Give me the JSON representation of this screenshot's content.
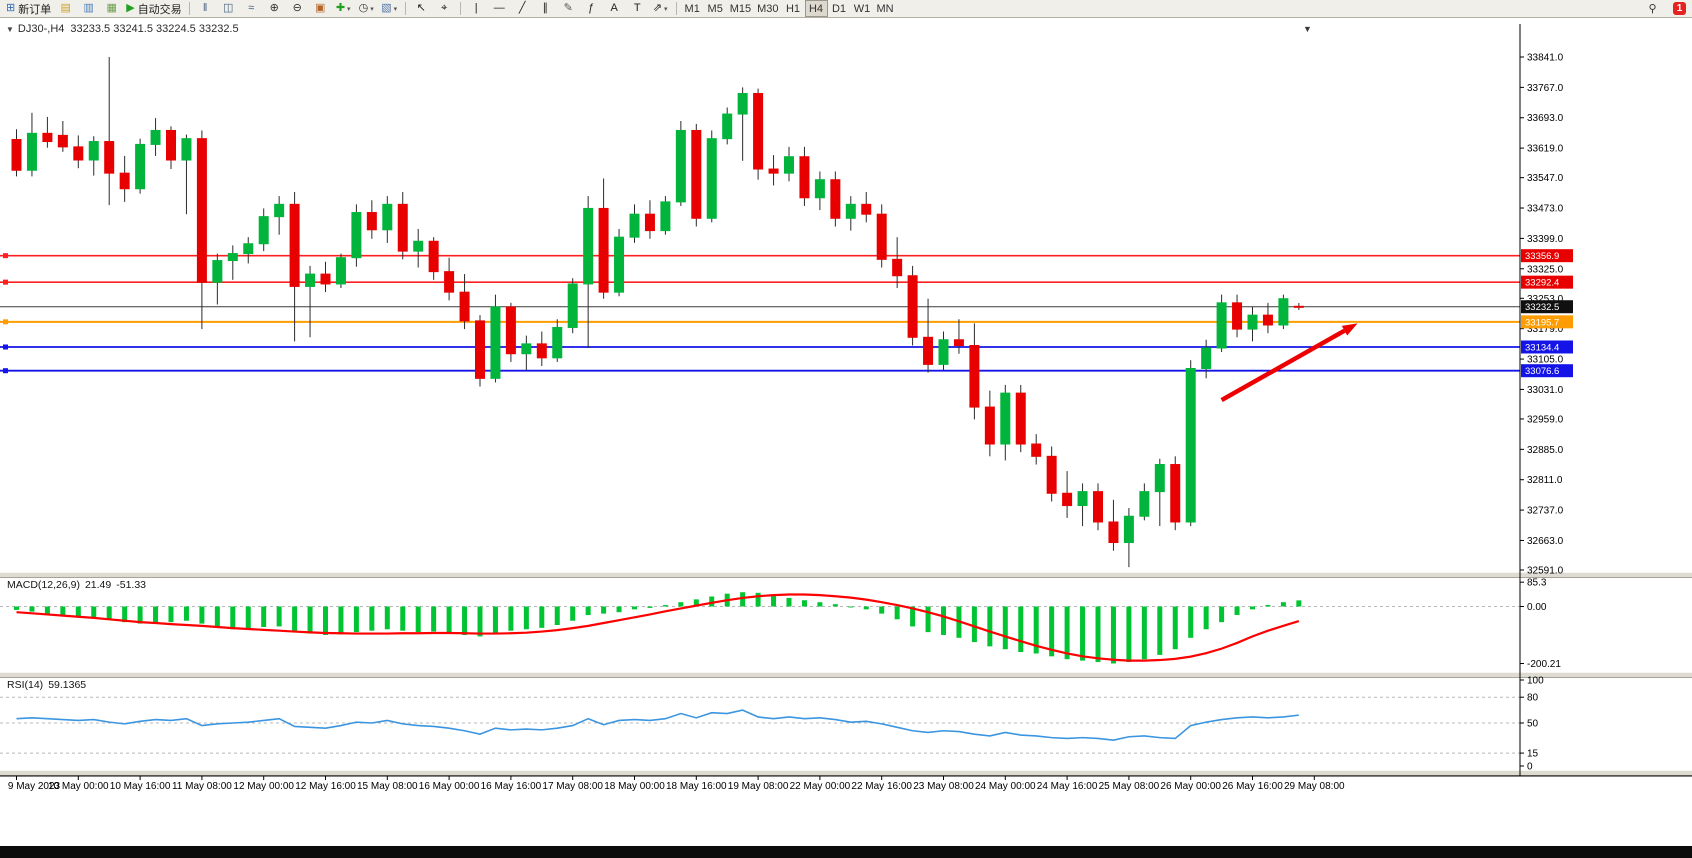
{
  "toolbar": {
    "items": [
      {
        "name": "new-order",
        "glyph": "⊞",
        "glyph_color": "#2f6db5",
        "label": "新订单"
      },
      {
        "name": "market-watch",
        "glyph": "▤",
        "glyph_color": "#c9a227"
      },
      {
        "name": "navigator",
        "glyph": "▥",
        "glyph_color": "#4a7dbf"
      },
      {
        "name": "terminal",
        "glyph": "▦",
        "glyph_color": "#6a9f4a"
      },
      {
        "name": "autotrading",
        "glyph": "▶",
        "glyph_color": "#1fa11f",
        "label": "自动交易"
      },
      {
        "type": "sep"
      },
      {
        "name": "bars-mode",
        "glyph": "‖",
        "glyph_color": "#44627f"
      },
      {
        "name": "candles-mode",
        "glyph": "◫",
        "glyph_color": "#44627f"
      },
      {
        "name": "line-mode",
        "glyph": "≈",
        "glyph_color": "#44627f"
      },
      {
        "name": "zoom-in",
        "glyph": "⊕",
        "glyph_color": "#333333"
      },
      {
        "name": "zoom-out",
        "glyph": "⊖",
        "glyph_color": "#333333"
      },
      {
        "name": "tile-windows",
        "glyph": "▣",
        "glyph_color": "#b5652a"
      },
      {
        "name": "indicators",
        "glyph": "✚",
        "glyph_color": "#1fa11f",
        "caret": true
      },
      {
        "name": "periods",
        "glyph": "◷",
        "glyph_color": "#333333",
        "caret": true
      },
      {
        "name": "templates",
        "glyph": "▧",
        "glyph_color": "#5577aa",
        "caret": true
      },
      {
        "type": "sep"
      },
      {
        "name": "cursor",
        "glyph": "↖",
        "glyph_color": "#222222"
      },
      {
        "name": "crosshair",
        "glyph": "⌖",
        "glyph_color": "#222222"
      },
      {
        "type": "sep"
      },
      {
        "name": "vertical-line",
        "glyph": "|",
        "glyph_color": "#222222"
      },
      {
        "name": "horizontal-line",
        "glyph": "—",
        "glyph_color": "#222222"
      },
      {
        "name": "trendline",
        "glyph": "╱",
        "glyph_color": "#222222"
      },
      {
        "name": "equidistant-channel",
        "glyph": "∥",
        "glyph_color": "#222222"
      },
      {
        "name": "draw-edit",
        "glyph": "✎",
        "glyph_color": "#555555"
      },
      {
        "name": "fibonacci",
        "glyph": "ƒ",
        "glyph_color": "#222222"
      },
      {
        "name": "text",
        "glyph": "A",
        "glyph_color": "#222222"
      },
      {
        "name": "text-label",
        "glyph": "T",
        "glyph_color": "#222222"
      },
      {
        "name": "arrows-objects",
        "glyph": "⇗",
        "glyph_color": "#222222",
        "caret": true
      },
      {
        "type": "sep"
      }
    ],
    "timeframes": [
      "M1",
      "M5",
      "M15",
      "M30",
      "H1",
      "H4",
      "D1",
      "W1",
      "MN"
    ],
    "active_timeframe": "H4",
    "search_glyph": "⚲",
    "badge_count": "1"
  },
  "chart": {
    "symbol_period": "DJ30-,H4",
    "ohlc": "33233.5 33241.5 33224.5 33232.5",
    "collapse_glyph": "▼",
    "shift_marker_glyph": "▼"
  },
  "indicators": {
    "macd": {
      "name": "MACD(12,26,9)",
      "value1": "21.49",
      "value2": "-51.33"
    },
    "rsi": {
      "name": "RSI(14)",
      "value": "59.1365"
    }
  },
  "chart_data": {
    "type": "candlestick",
    "symbol": "DJ30-",
    "timeframe": "H4",
    "price_axis": {
      "max": 33841,
      "min": 32591,
      "labels": [
        "33841.0",
        "33767.0",
        "33693.0",
        "33619.0",
        "33547.0",
        "33473.0",
        "33399.0",
        "33325.0",
        "33253.0",
        "33179.0",
        "33105.0",
        "33031.0",
        "32959.0",
        "32885.0",
        "32811.0",
        "32737.0",
        "32663.0",
        "32591.0"
      ]
    },
    "candles": [
      [
        33640,
        33665,
        33550,
        33565
      ],
      [
        33565,
        33705,
        33550,
        33655
      ],
      [
        33655,
        33695,
        33620,
        33635
      ],
      [
        33650,
        33685,
        33610,
        33622
      ],
      [
        33622,
        33650,
        33570,
        33590
      ],
      [
        33590,
        33648,
        33552,
        33635
      ],
      [
        33635,
        33841,
        33480,
        33558
      ],
      [
        33558,
        33600,
        33488,
        33520
      ],
      [
        33520,
        33642,
        33508,
        33628
      ],
      [
        33628,
        33692,
        33600,
        33662
      ],
      [
        33662,
        33672,
        33568,
        33590
      ],
      [
        33590,
        33652,
        33458,
        33642
      ],
      [
        33642,
        33662,
        33178,
        33292
      ],
      [
        33292,
        33362,
        33238,
        33345
      ],
      [
        33345,
        33382,
        33298,
        33362
      ],
      [
        33362,
        33402,
        33338,
        33386
      ],
      [
        33386,
        33472,
        33368,
        33452
      ],
      [
        33452,
        33502,
        33408,
        33482
      ],
      [
        33482,
        33512,
        33148,
        33282
      ],
      [
        33282,
        33332,
        33158,
        33312
      ],
      [
        33312,
        33342,
        33268,
        33288
      ],
      [
        33288,
        33362,
        33278,
        33352
      ],
      [
        33352,
        33482,
        33330,
        33462
      ],
      [
        33462,
        33492,
        33398,
        33420
      ],
      [
        33420,
        33502,
        33388,
        33482
      ],
      [
        33482,
        33512,
        33348,
        33368
      ],
      [
        33368,
        33422,
        33328,
        33392
      ],
      [
        33392,
        33402,
        33298,
        33318
      ],
      [
        33318,
        33352,
        33248,
        33268
      ],
      [
        33268,
        33312,
        33178,
        33198
      ],
      [
        33198,
        33212,
        33038,
        33058
      ],
      [
        33058,
        33262,
        33048,
        33232
      ],
      [
        33232,
        33242,
        33098,
        33118
      ],
      [
        33118,
        33162,
        33078,
        33142
      ],
      [
        33142,
        33172,
        33088,
        33108
      ],
      [
        33108,
        33202,
        33098,
        33182
      ],
      [
        33182,
        33302,
        33168,
        33288
      ],
      [
        33288,
        33502,
        33132,
        33472
      ],
      [
        33472,
        33545,
        33252,
        33268
      ],
      [
        33268,
        33422,
        33258,
        33402
      ],
      [
        33402,
        33482,
        33388,
        33458
      ],
      [
        33458,
        33492,
        33398,
        33418
      ],
      [
        33418,
        33502,
        33408,
        33488
      ],
      [
        33488,
        33685,
        33478,
        33662
      ],
      [
        33662,
        33678,
        33428,
        33448
      ],
      [
        33448,
        33662,
        33438,
        33642
      ],
      [
        33642,
        33718,
        33628,
        33702
      ],
      [
        33702,
        33767,
        33588,
        33752
      ],
      [
        33752,
        33764,
        33542,
        33568
      ],
      [
        33568,
        33602,
        33528,
        33558
      ],
      [
        33558,
        33622,
        33538,
        33598
      ],
      [
        33598,
        33622,
        33478,
        33498
      ],
      [
        33498,
        33562,
        33468,
        33542
      ],
      [
        33542,
        33562,
        33428,
        33448
      ],
      [
        33448,
        33502,
        33418,
        33482
      ],
      [
        33482,
        33512,
        33438,
        33458
      ],
      [
        33458,
        33482,
        33328,
        33348
      ],
      [
        33348,
        33402,
        33278,
        33308
      ],
      [
        33308,
        33332,
        33138,
        33158
      ],
      [
        33158,
        33252,
        33072,
        33092
      ],
      [
        33092,
        33172,
        33078,
        33152
      ],
      [
        33152,
        33202,
        33118,
        33138
      ],
      [
        33138,
        33192,
        32958,
        32988
      ],
      [
        32988,
        33028,
        32868,
        32898
      ],
      [
        32898,
        33042,
        32858,
        33022
      ],
      [
        33022,
        33042,
        32878,
        32898
      ],
      [
        32898,
        32922,
        32848,
        32868
      ],
      [
        32868,
        32892,
        32758,
        32778
      ],
      [
        32778,
        32832,
        32718,
        32748
      ],
      [
        32748,
        32802,
        32698,
        32782
      ],
      [
        32782,
        32802,
        32688,
        32708
      ],
      [
        32708,
        32762,
        32638,
        32658
      ],
      [
        32658,
        32742,
        32598,
        32722
      ],
      [
        32722,
        32802,
        32712,
        32782
      ],
      [
        32782,
        32862,
        32698,
        32848
      ],
      [
        32848,
        32868,
        32688,
        32708
      ],
      [
        32708,
        33102,
        32698,
        33082
      ],
      [
        33082,
        33152,
        33058,
        33132
      ],
      [
        33132,
        33262,
        33122,
        33242
      ],
      [
        33242,
        33262,
        33158,
        33178
      ],
      [
        33178,
        33232,
        33148,
        33212
      ],
      [
        33212,
        33242,
        33168,
        33188
      ],
      [
        33188,
        33262,
        33178,
        33252
      ],
      [
        33233.5,
        33241.5,
        33224.5,
        33232.5
      ]
    ],
    "hlines": [
      {
        "value": 33356.9,
        "label": "33356.9",
        "color": "#fd2020",
        "tag_bg": "#e80000",
        "tag_fg": "#ffffff",
        "width": 1.6,
        "handle": true
      },
      {
        "value": 33292.4,
        "label": "33292.4",
        "color": "#fd2020",
        "tag_bg": "#e80000",
        "tag_fg": "#ffffff",
        "width": 1.6,
        "handle": true
      },
      {
        "value": 33232.5,
        "label": "33232.5",
        "color": "#3c3c3c",
        "tag_bg": "#101010",
        "tag_fg": "#ffffff",
        "width": 1,
        "handle": false
      },
      {
        "value": 33195.7,
        "label": "33195.7",
        "color": "#ff9d00",
        "tag_bg": "#ff9d00",
        "tag_fg": "#ffffff",
        "width": 2,
        "handle": true
      },
      {
        "value": 33134.4,
        "label": "33134.4",
        "color": "#1414e8",
        "tag_bg": "#1414e8",
        "tag_fg": "#ffffff",
        "width": 1.8,
        "handle": true
      },
      {
        "value": 33076.6,
        "label": "33076.6",
        "color": "#1414e8",
        "tag_bg": "#1414e8",
        "tag_fg": "#ffffff",
        "width": 1.8,
        "handle": true
      }
    ],
    "time_labels": [
      "9 May 2023",
      "10 May 00:00",
      "10 May 16:00",
      "11 May 08:00",
      "12 May 00:00",
      "12 May 16:00",
      "15 May 08:00",
      "16 May 00:00",
      "16 May 16:00",
      "17 May 08:00",
      "18 May 00:00",
      "18 May 16:00",
      "19 May 08:00",
      "22 May 00:00",
      "22 May 16:00",
      "23 May 08:00",
      "24 May 00:00",
      "24 May 16:00",
      "25 May 08:00",
      "26 May 00:00",
      "26 May 16:00",
      "29 May 08:00"
    ],
    "label_every_n_bars": 4,
    "macd": {
      "title": "MACD(12,26,9)",
      "histogram": [
        -12,
        -18,
        -25,
        -30,
        -35,
        -40,
        -45,
        -55,
        -60,
        -58,
        -55,
        -50,
        -60,
        -75,
        -80,
        -78,
        -72,
        -70,
        -85,
        -95,
        -100,
        -98,
        -90,
        -85,
        -80,
        -85,
        -90,
        -88,
        -95,
        -100,
        -105,
        -95,
        -85,
        -80,
        -75,
        -65,
        -50,
        -30,
        -25,
        -20,
        -10,
        -5,
        5,
        15,
        25,
        35,
        45,
        50,
        48,
        40,
        30,
        22,
        15,
        8,
        0,
        -10,
        -25,
        -45,
        -70,
        -90,
        -100,
        -110,
        -125,
        -140,
        -150,
        -160,
        -165,
        -175,
        -185,
        -190,
        -195,
        -200,
        -195,
        -185,
        -170,
        -150,
        -110,
        -80,
        -55,
        -30,
        -10,
        5,
        15,
        21.49
      ],
      "signal": [
        -20,
        -24,
        -28,
        -32,
        -36,
        -40,
        -45,
        -50,
        -55,
        -58,
        -62,
        -65,
        -68,
        -72,
        -76,
        -79,
        -82,
        -85,
        -88,
        -91,
        -93,
        -94,
        -95,
        -95,
        -95,
        -94,
        -94,
        -93,
        -93,
        -94,
        -95,
        -95,
        -94,
        -92,
        -88,
        -83,
        -76,
        -68,
        -58,
        -48,
        -38,
        -28,
        -17,
        -7,
        3,
        13,
        22,
        30,
        36,
        40,
        42,
        42,
        40,
        36,
        31,
        24,
        15,
        5,
        -7,
        -20,
        -35,
        -52,
        -70,
        -88,
        -105,
        -122,
        -138,
        -152,
        -165,
        -175,
        -182,
        -187,
        -190,
        -190,
        -188,
        -184,
        -176,
        -164,
        -148,
        -128,
        -105,
        -85,
        -68,
        -51.33
      ],
      "ticks": [
        {
          "label": "85.3",
          "value": 85.3
        },
        {
          "label": "0.00",
          "value": 0
        },
        {
          "label": "-200.21",
          "value": -200.21
        }
      ],
      "range": [
        -230,
        100
      ]
    },
    "rsi": {
      "title": "RSI(14)",
      "values": [
        55,
        56,
        55,
        54,
        53,
        54,
        51,
        49,
        52,
        54,
        53,
        55,
        47,
        49,
        50,
        51,
        53,
        55,
        46,
        45,
        44,
        47,
        51,
        50,
        53,
        49,
        47,
        46,
        44,
        41,
        37,
        44,
        42,
        43,
        42,
        44,
        47,
        55,
        48,
        53,
        54,
        53,
        55,
        61,
        56,
        62,
        61,
        65,
        57,
        55,
        57,
        55,
        56,
        54,
        51,
        52,
        49,
        45,
        41,
        39,
        41,
        40,
        37,
        35,
        39,
        36,
        35,
        33,
        32,
        33,
        32,
        30,
        34,
        35,
        33,
        32,
        47,
        51,
        54,
        56,
        57,
        56,
        57,
        59.14
      ],
      "ticks": [
        {
          "label": "100",
          "value": 100
        },
        {
          "label": "80",
          "value": 80
        },
        {
          "label": "50",
          "value": 50
        },
        {
          "label": "15",
          "value": 15
        },
        {
          "label": "0",
          "value": 0
        }
      ],
      "levels": [
        80,
        50,
        15
      ],
      "range": [
        0,
        100
      ]
    },
    "arrow": {
      "bar_from": 78,
      "price_from": 33005,
      "bar_to": 86.8,
      "price_to": 33192,
      "color": "#ee0000"
    },
    "colors": {
      "bull": "#00b43c",
      "bear": "#e80000",
      "wick": "#2b2b2b",
      "macd_hist": "#00c432",
      "macd_signal": "#ff0000",
      "rsi_line": "#3b95e0",
      "axis_text": "#000000",
      "separator": "#dedbd2",
      "level_dash": "#b8b8b8"
    }
  }
}
